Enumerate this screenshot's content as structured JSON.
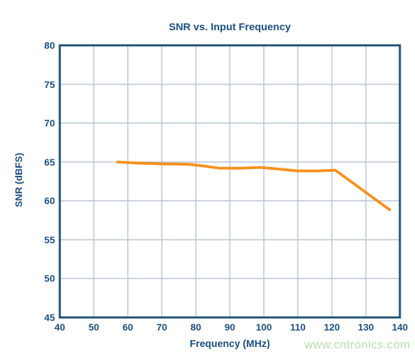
{
  "watermark": {
    "text": "www.cntronics.com",
    "color": "#b5dcae"
  },
  "chart_data": {
    "type": "line",
    "title": "SNR vs. Input Frequency",
    "xlabel": "Frequency (MHz)",
    "ylabel": "SNR (dBFS)",
    "xlim": [
      40,
      140
    ],
    "ylim": [
      45,
      80
    ],
    "x_ticks": [
      40,
      50,
      60,
      70,
      80,
      90,
      100,
      110,
      120,
      130,
      140
    ],
    "y_ticks": [
      45,
      50,
      55,
      60,
      65,
      70,
      75,
      80
    ],
    "grid": true,
    "legend": false,
    "series": [
      {
        "name": "SNR",
        "color": "#f6921e",
        "points": [
          [
            57,
            65.0
          ],
          [
            63,
            64.85
          ],
          [
            70,
            64.75
          ],
          [
            78,
            64.7
          ],
          [
            82,
            64.5
          ],
          [
            87,
            64.2
          ],
          [
            93,
            64.2
          ],
          [
            99,
            64.3
          ],
          [
            104,
            64.1
          ],
          [
            110,
            63.85
          ],
          [
            116,
            63.85
          ],
          [
            121,
            63.95
          ],
          [
            137,
            58.85
          ]
        ]
      }
    ],
    "colors": {
      "axis_text": "#1b4e7e",
      "border": "#1d4f78",
      "grid": "#b8c5d2"
    }
  }
}
